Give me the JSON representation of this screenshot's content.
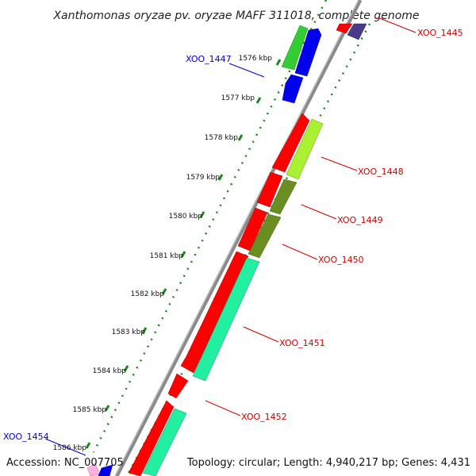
{
  "title": "Xanthomonas oryzae pv. oryzae MAFF 311018, complete genome",
  "accession": "Accession: NC_007705",
  "summary": "Topology: circular; Length: 4,940,217 bp; Genes: 4,431",
  "colors": {
    "backbone": "#8a8a8a",
    "tick_dots": "#1a8a1a",
    "forward_label": "#0000cc",
    "reverse_label": "#cc0000",
    "gene_red": "#ff0000",
    "gene_blue": "#0000ee",
    "gene_green": "#33cc33",
    "gene_teal": "#22f0a0",
    "gene_olive": "#6b8e23",
    "gene_lime": "#aaf033",
    "gene_navy": "#4a3a8a",
    "gene_pink": "#ffb0e0"
  },
  "ticks": [
    {
      "label": "1576 kbp"
    },
    {
      "label": "1577 kbp"
    },
    {
      "label": "1578 kbp"
    },
    {
      "label": "1579 kbp"
    },
    {
      "label": "1580 kbp"
    },
    {
      "label": "1581 kbp"
    },
    {
      "label": "1582 kbp"
    },
    {
      "label": "1583 kbp"
    },
    {
      "label": "1584 kbp"
    },
    {
      "label": "1585 kbp"
    },
    {
      "label": "1586 kbp"
    }
  ],
  "gene_labels": [
    {
      "name": "XOO_1445",
      "strand": "reverse"
    },
    {
      "name": "XOO_1447",
      "strand": "forward"
    },
    {
      "name": "XOO_1448",
      "strand": "reverse"
    },
    {
      "name": "XOO_1449",
      "strand": "reverse"
    },
    {
      "name": "XOO_1450",
      "strand": "reverse"
    },
    {
      "name": "XOO_1451",
      "strand": "reverse"
    },
    {
      "name": "XOO_1452",
      "strand": "reverse"
    },
    {
      "name": "XOO_1454",
      "strand": "forward"
    }
  ]
}
